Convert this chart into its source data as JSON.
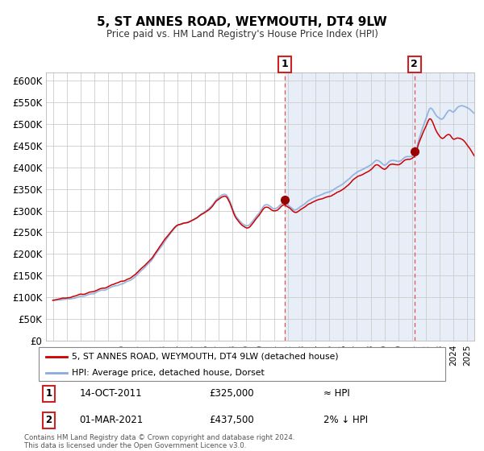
{
  "title": "5, ST ANNES ROAD, WEYMOUTH, DT4 9LW",
  "subtitle": "Price paid vs. HM Land Registry's House Price Index (HPI)",
  "ylabel_ticks": [
    "£0",
    "£50K",
    "£100K",
    "£150K",
    "£200K",
    "£250K",
    "£300K",
    "£350K",
    "£400K",
    "£450K",
    "£500K",
    "£550K",
    "£600K"
  ],
  "ytick_vals": [
    0,
    50000,
    100000,
    150000,
    200000,
    250000,
    300000,
    350000,
    400000,
    450000,
    500000,
    550000,
    600000
  ],
  "x_start_year": 1995,
  "x_end_year": 2025,
  "plot_bg_left": "#ffffff",
  "plot_bg_right": "#dce9f5",
  "hpi_color": "#88aadd",
  "price_color": "#cc0000",
  "marker_color": "#990000",
  "sale1_date_num": 2011.79,
  "sale1_price": 325000,
  "sale2_date_num": 2021.17,
  "sale2_price": 437500,
  "legend_label1": "5, ST ANNES ROAD, WEYMOUTH, DT4 9LW (detached house)",
  "legend_label2": "HPI: Average price, detached house, Dorset",
  "ann1_label": "1",
  "ann1_date": "14-OCT-2011",
  "ann1_price": "£325,000",
  "ann1_rel": "≈ HPI",
  "ann2_label": "2",
  "ann2_date": "01-MAR-2021",
  "ann2_price": "£437,500",
  "ann2_rel": "2% ↓ HPI",
  "footer": "Contains HM Land Registry data © Crown copyright and database right 2024.\nThis data is licensed under the Open Government Licence v3.0."
}
